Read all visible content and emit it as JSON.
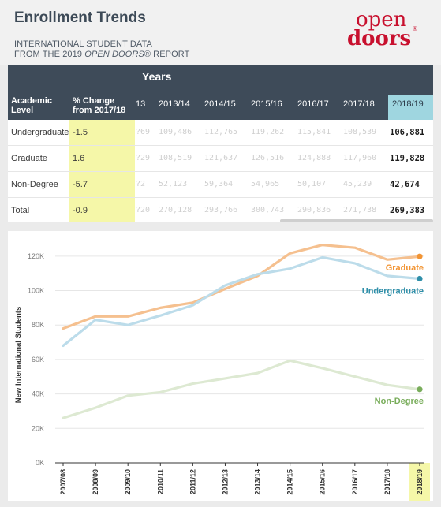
{
  "header": {
    "title": "Enrollment Trends",
    "subtitle_line1": "INTERNATIONAL STUDENT DATA",
    "subtitle_line2_pre": "FROM THE 2019 ",
    "subtitle_line2_em": "OPEN DOORS",
    "subtitle_line2_post": "® REPORT",
    "logo_top": "open",
    "logo_bottom": "doors",
    "logo_mark": "®"
  },
  "table": {
    "group_header": "Years",
    "col_level": "Academic Level",
    "col_change": "% Change from 2017/18",
    "partial_col": "13",
    "years": [
      "2013/14",
      "2014/15",
      "2015/16",
      "2016/17",
      "2017/18",
      "2018/19"
    ],
    "rows": [
      {
        "level": "Undergraduate",
        "change": "-1.5",
        "partial": "?69",
        "values": [
          "109,486",
          "112,765",
          "119,262",
          "115,841",
          "108,539",
          "106,881"
        ]
      },
      {
        "level": "Graduate",
        "change": "1.6",
        "partial": "?29",
        "values": [
          "108,519",
          "121,637",
          "126,516",
          "124,888",
          "117,960",
          "119,828"
        ]
      },
      {
        "level": "Non-Degree",
        "change": "-5.7",
        "partial": "?2",
        "values": [
          "52,123",
          "59,364",
          "54,965",
          "50,107",
          "45,239",
          "42,674"
        ]
      },
      {
        "level": "Total",
        "change": "-0.9",
        "partial": "?20",
        "values": [
          "270,128",
          "293,766",
          "300,743",
          "290,836",
          "271,738",
          "269,383"
        ]
      }
    ]
  },
  "chart_data": {
    "type": "line",
    "ylabel": "New International Students",
    "x": [
      "2007/08",
      "2008/09",
      "2009/10",
      "2010/11",
      "2011/12",
      "2012/13",
      "2013/14",
      "2014/15",
      "2015/16",
      "2016/17",
      "2017/18",
      "2018/19"
    ],
    "ylim": [
      0,
      130000
    ],
    "yticks": [
      0,
      20000,
      40000,
      60000,
      80000,
      100000,
      120000
    ],
    "ytick_labels": [
      "0K",
      "20K",
      "40K",
      "60K",
      "80K",
      "100K",
      "120K"
    ],
    "grid": true,
    "highlight_x": "2018/19",
    "series": [
      {
        "name": "Graduate",
        "color": "#f5c08f",
        "end_color": "#f29433",
        "label_color": "#f29433",
        "values": [
          78000,
          85000,
          85000,
          90000,
          93000,
          101000,
          108519,
          121637,
          126516,
          124888,
          117960,
          119828
        ]
      },
      {
        "name": "Undergraduate",
        "color": "#bcdcea",
        "end_color": "#2f8fa9",
        "label_color": "#2f8fa9",
        "values": [
          68000,
          83000,
          80000,
          85500,
          91500,
          103000,
          109486,
          112765,
          119262,
          115841,
          108539,
          106881
        ]
      },
      {
        "name": "Non-Degree",
        "color": "#dde9d2",
        "end_color": "#79ad5b",
        "label_color": "#79ad5b",
        "values": [
          26000,
          32000,
          39000,
          41000,
          46000,
          49000,
          52123,
          59364,
          54965,
          50107,
          45239,
          42674
        ]
      }
    ]
  }
}
